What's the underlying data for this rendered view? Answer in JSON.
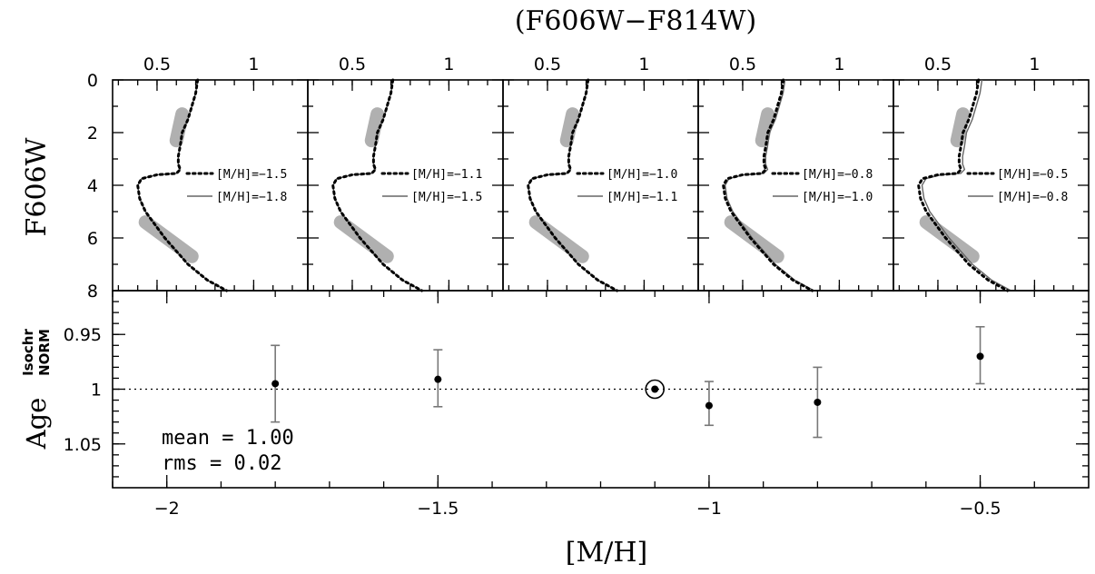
{
  "figure": {
    "top_title": "(F606W−F814W)",
    "bottom_xlabel": "[M/H]",
    "top_ylabel": "F606W",
    "bottom_ylabel_main": "Age",
    "bottom_ylabel_sup": "Isochr",
    "bottom_ylabel_sub": "NORM",
    "stats": {
      "mean": "mean = 1.00",
      "rms": "rms = 0.02"
    }
  },
  "chart_data": [
    {
      "type": "line",
      "panels": [
        {
          "legend": [
            "[M/H]=−1.5",
            "[M/H]=−1.8"
          ]
        },
        {
          "legend": [
            "[M/H]=−1.1",
            "[M/H]=−1.5"
          ]
        },
        {
          "legend": [
            "[M/H]=−1.0",
            "[M/H]=−1.1"
          ]
        },
        {
          "legend": [
            "[M/H]=−0.8",
            "[M/H]=−1.0"
          ]
        },
        {
          "legend": [
            "[M/H]=−0.5",
            "[M/H]=−0.8"
          ]
        }
      ],
      "panel_offsets": [
        0,
        0,
        0,
        0.03,
        0.06
      ],
      "x_ticks": [
        0.5,
        1
      ],
      "x_ticklabels": [
        "0.5",
        "1"
      ],
      "xlim": [
        0.27,
        1.28
      ],
      "y_ticks": [
        0,
        2,
        4,
        6,
        8
      ],
      "y_ticklabels": [
        "0",
        "2",
        "4",
        "6",
        "8"
      ],
      "ylim": [
        8,
        0
      ],
      "isochrone": {
        "color": [
          0.71,
          0.7,
          0.68,
          0.66,
          0.63,
          0.62,
          0.61,
          0.61,
          0.62,
          0.6,
          0.5,
          0.42,
          0.4,
          0.41,
          0.44,
          0.49,
          0.54,
          0.6,
          0.66,
          0.71,
          0.76,
          0.81,
          0.86
        ],
        "mag": [
          0.0,
          0.5,
          1.0,
          1.5,
          2.0,
          2.5,
          2.9,
          3.2,
          3.4,
          3.55,
          3.6,
          3.75,
          4.0,
          4.5,
          5.0,
          5.5,
          6.0,
          6.5,
          7.0,
          7.3,
          7.6,
          7.8,
          8.0
        ]
      },
      "fit_regions": [
        {
          "color": [
            0.63,
            0.6
          ],
          "mag": [
            1.3,
            2.3
          ]
        },
        {
          "color": [
            0.44,
            0.68
          ],
          "mag": [
            5.4,
            6.7
          ]
        }
      ]
    },
    {
      "type": "scatter",
      "x": [
        -1.8,
        -1.5,
        -1.1,
        -1.0,
        -0.8,
        -0.5
      ],
      "y": [
        0.995,
        0.991,
        1.0,
        1.015,
        1.012,
        0.97
      ],
      "yerr_low": [
        0.035,
        0.027,
        0,
        0.022,
        0.032,
        0.027
      ],
      "yerr_high": [
        0.035,
        0.025,
        0,
        0.018,
        0.032,
        0.025
      ],
      "highlighted_point": -1.1,
      "reference_y": 1.0,
      "xlim": [
        -2.1,
        -0.3
      ],
      "ylim": [
        1.09,
        0.91
      ],
      "x_ticks": [
        -2,
        -1.5,
        -1,
        -0.5
      ],
      "x_ticklabels": [
        "−2",
        "−1.5",
        "−1",
        "−0.5"
      ],
      "y_ticks": [
        0.95,
        1,
        1.05
      ],
      "y_ticklabels": [
        "0.95",
        "1",
        "1.05"
      ]
    }
  ]
}
